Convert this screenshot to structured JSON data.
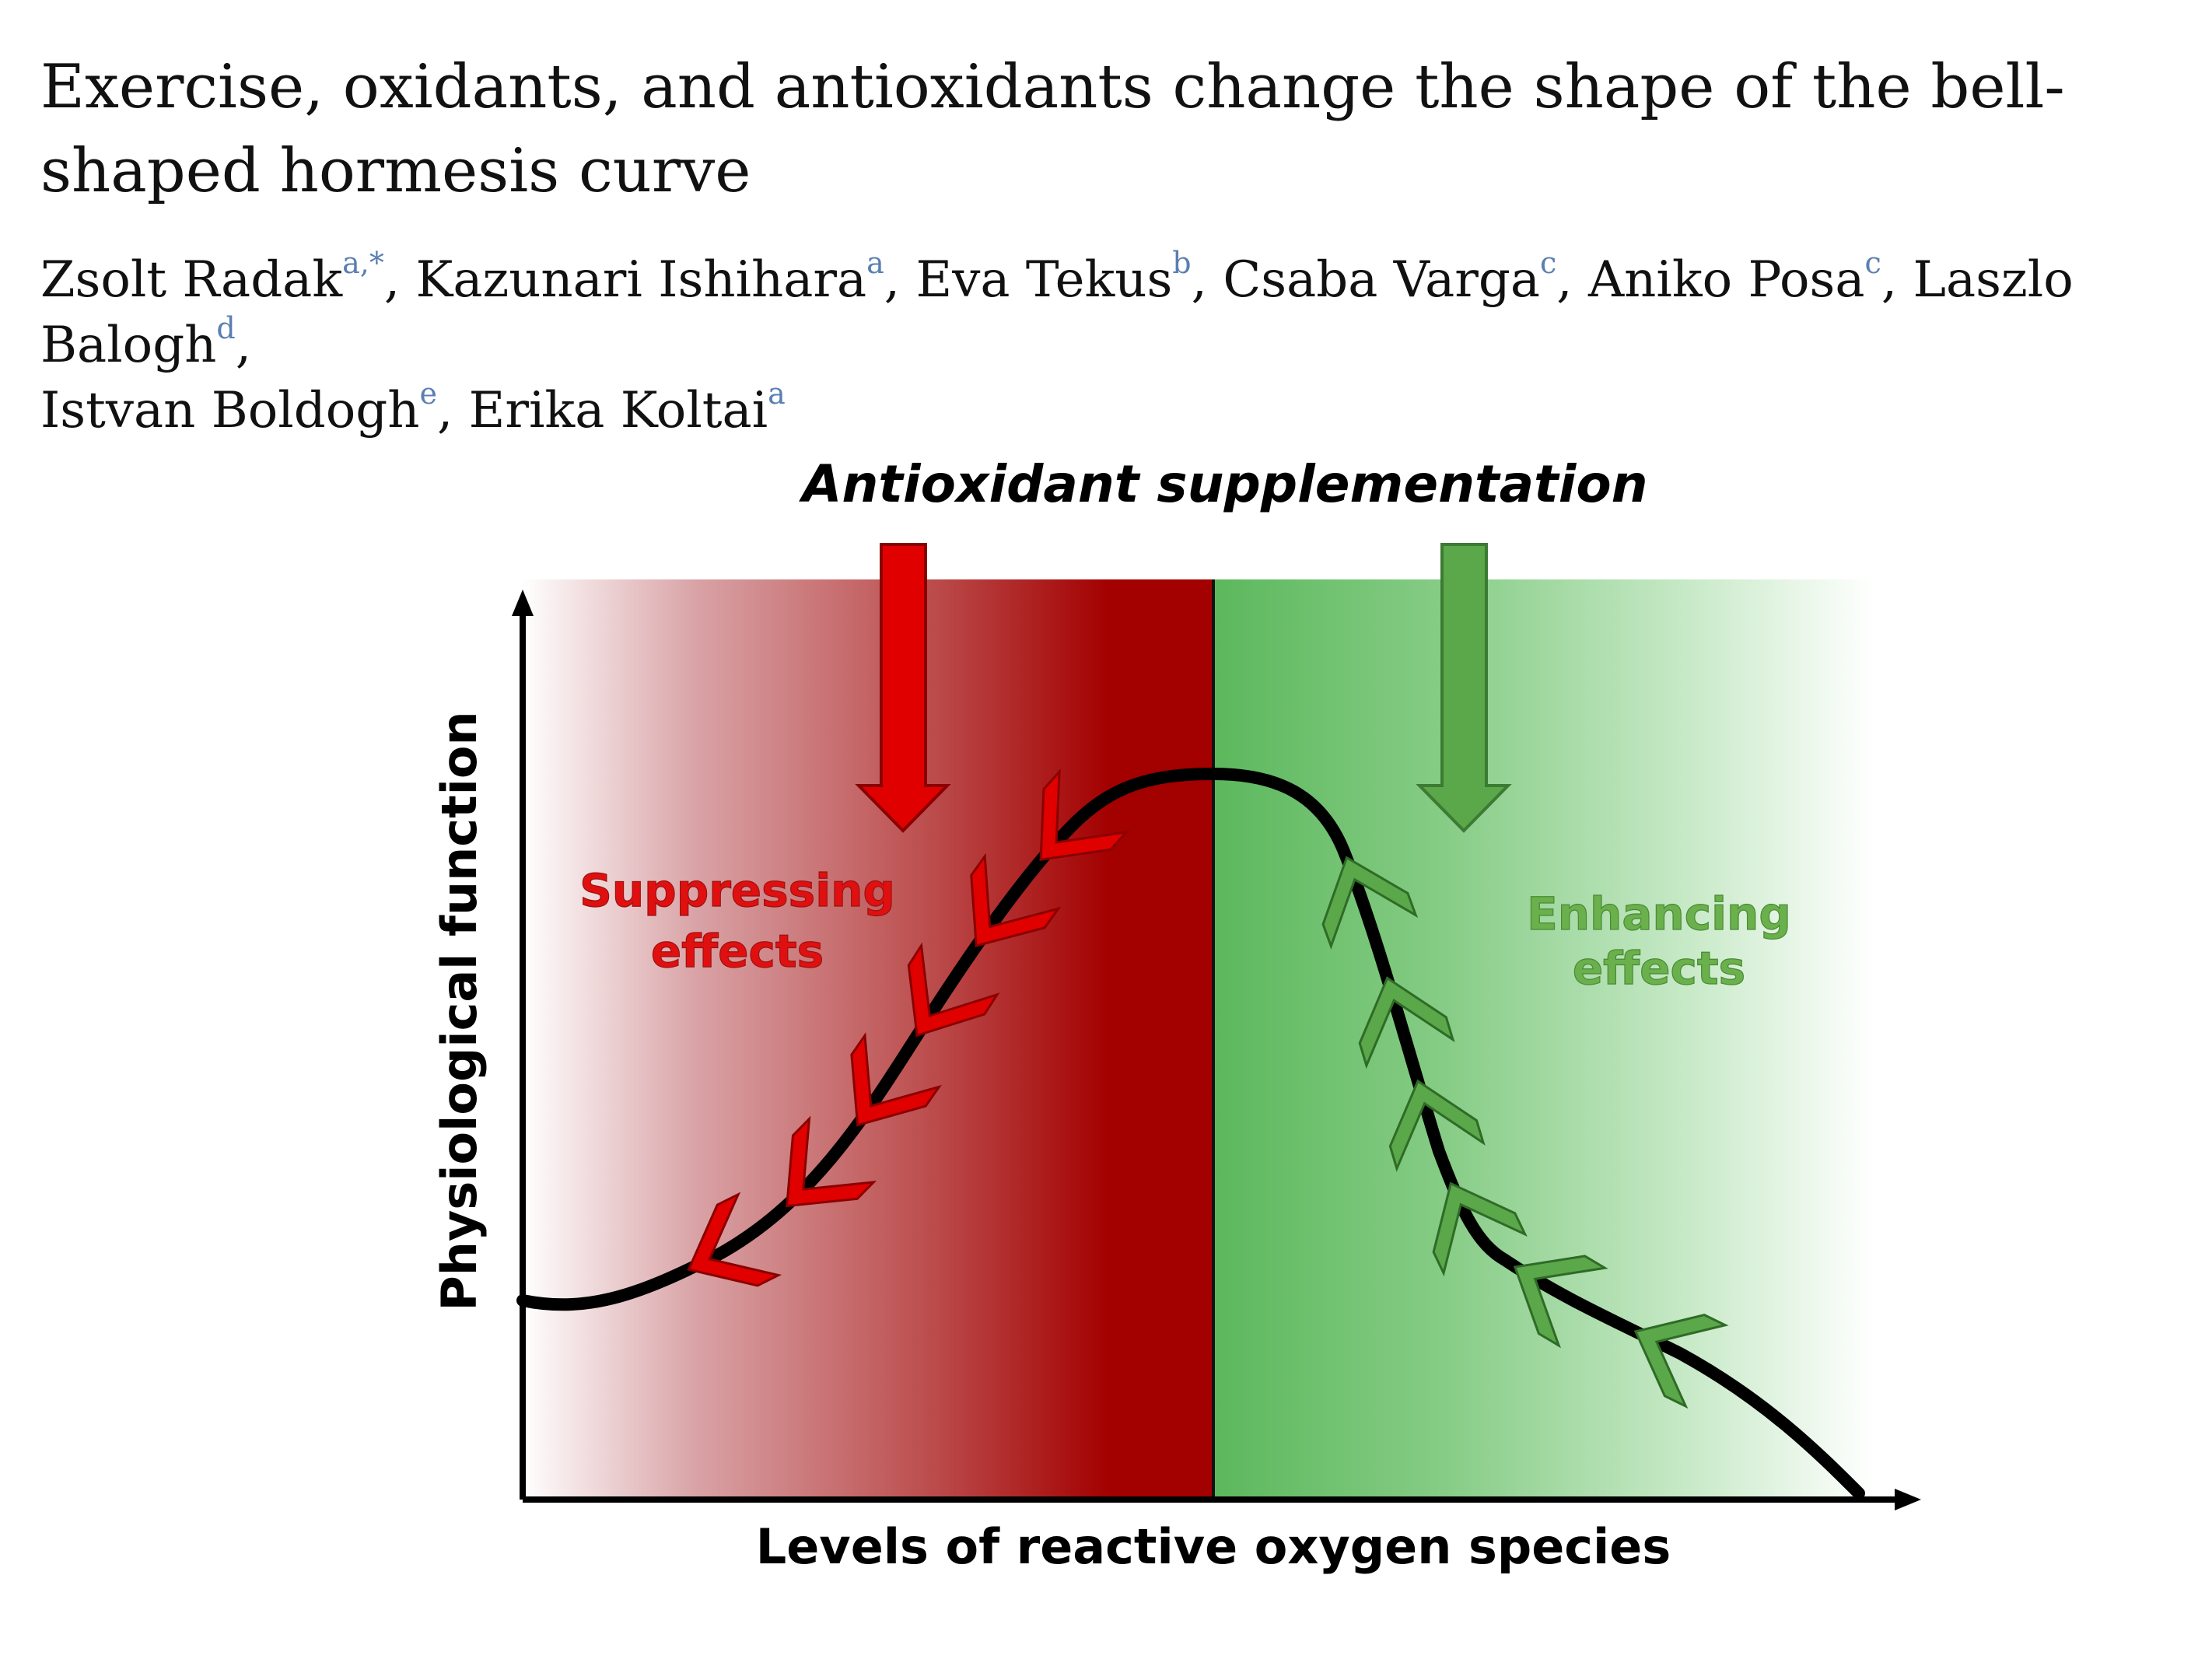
{
  "paper": {
    "title": "Exercise, oxidants, and antioxidants change the shape of the bell-shaped hormesis curve",
    "authors": [
      {
        "name": "Zsolt Radak",
        "aff": "a,*"
      },
      {
        "name": "Kazunari Ishihara",
        "aff": "a"
      },
      {
        "name": "Eva Tekus",
        "aff": "b"
      },
      {
        "name": "Csaba Varga",
        "aff": "c"
      },
      {
        "name": "Aniko Posa",
        "aff": "c"
      },
      {
        "name": "Laszlo Balogh",
        "aff": "d"
      },
      {
        "name": "Istvan Boldogh",
        "aff": "e"
      },
      {
        "name": "Erika Koltai",
        "aff": "a"
      }
    ]
  },
  "figure": {
    "top_label": "Antioxidant supplementation",
    "left_effect": [
      "Suppressing",
      "effects"
    ],
    "right_effect": [
      "Enhancing",
      "effects"
    ],
    "x_axis_label": "Levels of reactive oxygen species",
    "y_axis_label": "Physiological function",
    "colors": {
      "red_zone": "#a30000",
      "red_arrow": "#e00000",
      "green_zone": "#5cb85c",
      "green_arrow": "#5aa84a",
      "suppress_text": "#e01010",
      "enhance_text": "#6ab04c"
    }
  }
}
